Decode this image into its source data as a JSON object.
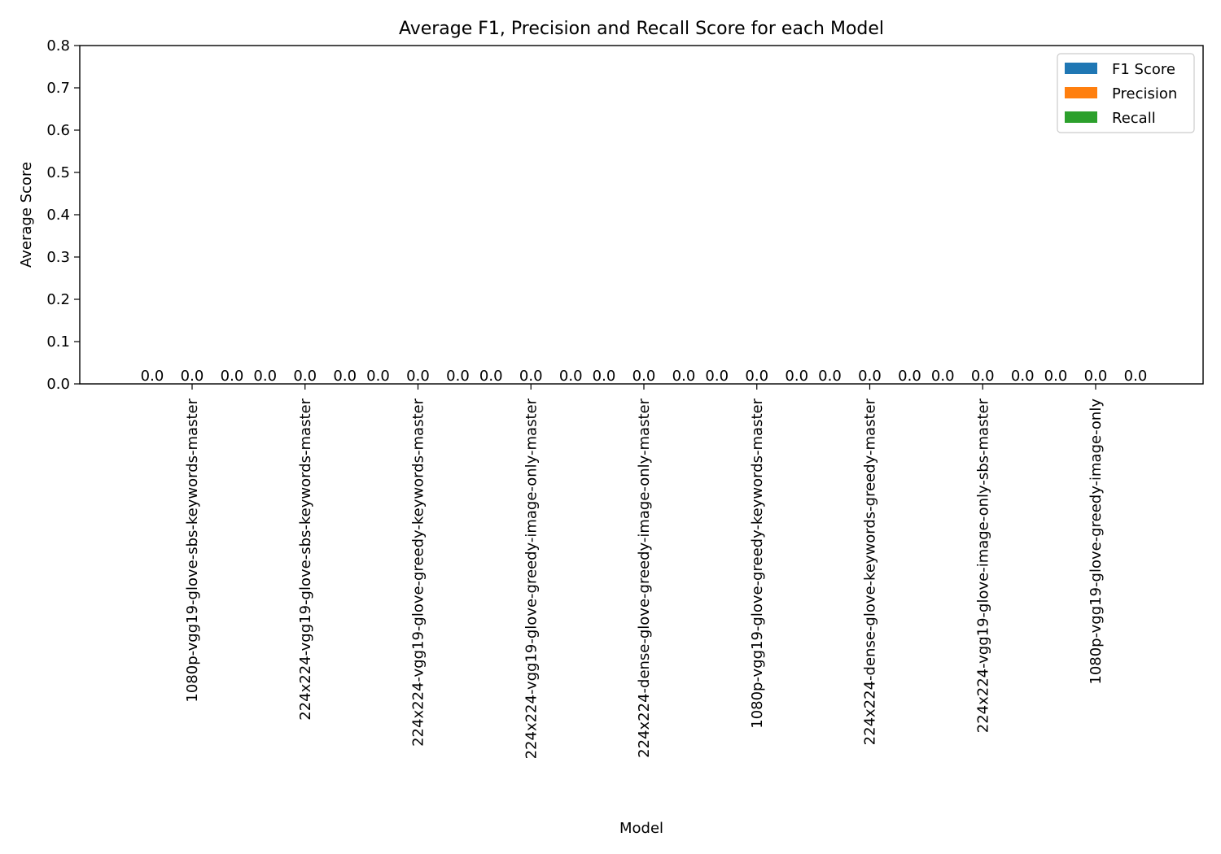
{
  "chart_data": {
    "type": "bar",
    "title": "Average F1, Precision and Recall Score for each Model",
    "xlabel": "Model",
    "ylabel": "Average Score",
    "ylim": [
      0,
      0.8
    ],
    "yticks": [
      "0.0",
      "0.1",
      "0.2",
      "0.3",
      "0.4",
      "0.5",
      "0.6",
      "0.7",
      "0.8"
    ],
    "categories": [
      "1080p-vgg19-glove-sbs-keywords-master",
      "224x224-vgg19-glove-sbs-keywords-master",
      "224x224-vgg19-glove-greedy-keywords-master",
      "224x224-vgg19-glove-greedy-image-only-master",
      "224x224-dense-glove-greedy-image-only-master",
      "1080p-vgg19-glove-greedy-keywords-master",
      "224x224-dense-glove-keywords-greedy-master",
      "224x224-vgg19-glove-image-only-sbs-master",
      "1080p-vgg19-glove-greedy-image-only"
    ],
    "series": [
      {
        "name": "F1 Score",
        "color": "#1f77b4",
        "values": [
          0.0,
          0.0,
          0.0,
          0.0,
          0.0,
          0.0,
          0.0,
          0.0,
          0.0
        ]
      },
      {
        "name": "Precision",
        "color": "#ff7f0e",
        "values": [
          0.0,
          0.0,
          0.0,
          0.0,
          0.0,
          0.0,
          0.0,
          0.0,
          0.0
        ]
      },
      {
        "name": "Recall",
        "color": "#2ca02c",
        "values": [
          0.0,
          0.0,
          0.0,
          0.0,
          0.0,
          0.0,
          0.0,
          0.0,
          0.0
        ]
      }
    ],
    "data_labels": [
      "0.0",
      "0.0",
      "0.0",
      "0.0",
      "0.0",
      "0.0",
      "0.0",
      "0.0",
      "0.0",
      "0.0",
      "0.0",
      "0.0",
      "0.0",
      "0.0",
      "0.0",
      "0.0",
      "0.0",
      "0.0",
      "0.0",
      "0.0",
      "0.0",
      "0.0",
      "0.0",
      "0.0",
      "0.0",
      "0.0",
      "0.0"
    ],
    "legend": "top-right",
    "grid": false
  }
}
